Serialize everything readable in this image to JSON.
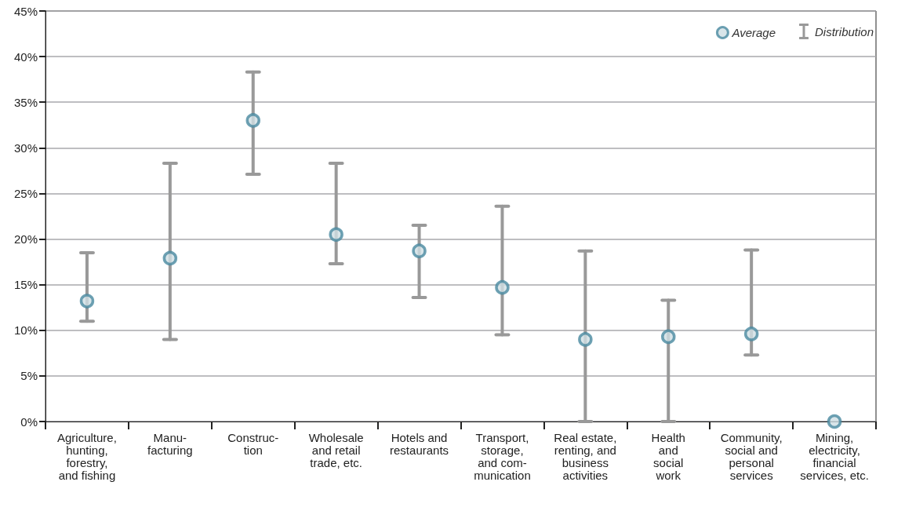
{
  "chart_data": {
    "type": "scatter",
    "categories": [
      "Agriculture,\nhunting,\nforestry,\nand fishing",
      "Manu-\nfacturing",
      "Construc-\ntion",
      "Wholesale\nand retail\ntrade, etc.",
      "Hotels and\nrestaurants",
      "Transport,\nstorage,\nand com-\nmunication",
      "Real estate,\nrenting, and\nbusiness\nactivities",
      "Health\nand\nsocial\nwork",
      "Community,\nsocial and\npersonal\nservices",
      "Mining,\nelectricity,\nfinancial\nservices, etc."
    ],
    "series": [
      {
        "name": "Average",
        "color": "#4a8aa0",
        "values": [
          13.2,
          17.9,
          33.0,
          20.5,
          18.7,
          14.7,
          9.0,
          9.3,
          9.6,
          0
        ],
        "errors": [
          [
            11.0,
            18.5
          ],
          [
            9.0,
            28.3
          ],
          [
            27.1,
            38.3
          ],
          [
            17.3,
            28.3
          ],
          [
            13.6,
            21.5
          ],
          [
            9.5,
            23.6
          ],
          [
            0,
            18.7
          ],
          [
            0,
            13.3
          ],
          [
            7.3,
            18.8
          ],
          null
        ]
      }
    ],
    "annotations": [
      "Distribution"
    ],
    "ylim": [
      0,
      45
    ],
    "yticks": [
      {
        "value": 0,
        "label": "0%"
      },
      {
        "value": 5,
        "label": "5%"
      },
      {
        "value": 10,
        "label": "10%"
      },
      {
        "value": 15,
        "label": "15%"
      },
      {
        "value": 20,
        "label": "20%"
      },
      {
        "value": 25,
        "label": "25%"
      },
      {
        "value": 30,
        "label": "30%"
      },
      {
        "value": 35,
        "label": "35%"
      },
      {
        "value": 40,
        "label": "40%"
      },
      {
        "value": 45,
        "label": "45%"
      }
    ],
    "grid": "y",
    "legend": "top right",
    "marker": "circle"
  }
}
